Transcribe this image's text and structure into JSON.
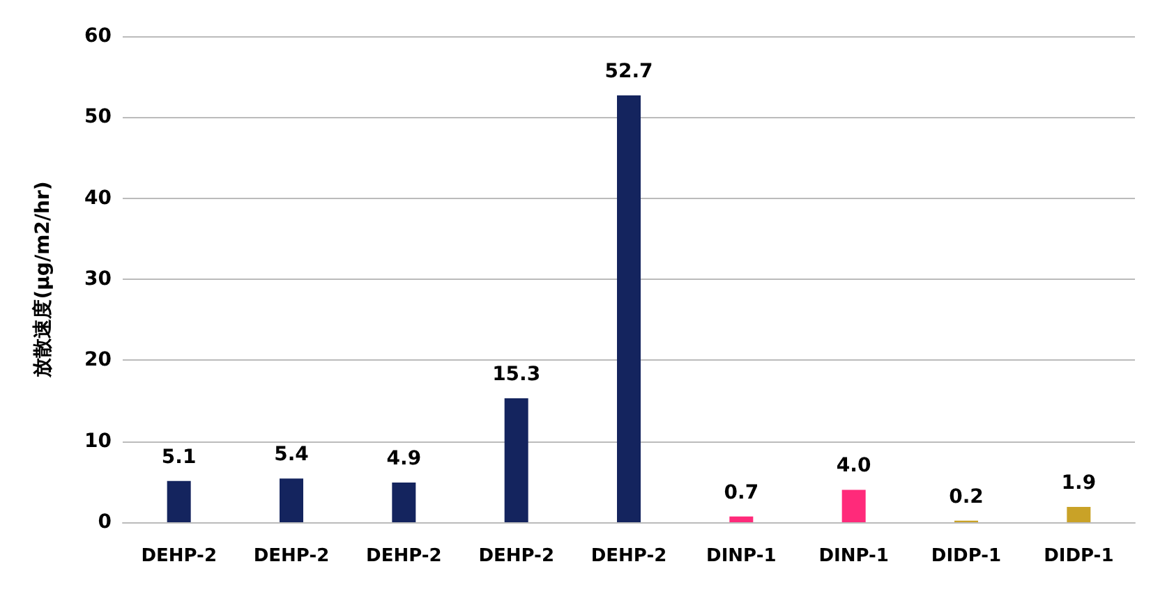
{
  "chart_data": {
    "type": "bar",
    "ylabel": "放散速度(μg/m2/hr)",
    "categories": [
      "DEHP-2",
      "DEHP-2",
      "DEHP-2",
      "DEHP-2",
      "DEHP-2",
      "DINP-1",
      "DINP-1",
      "DIDP-1",
      "DIDP-1"
    ],
    "values": [
      5.1,
      5.4,
      4.9,
      15.3,
      52.7,
      0.7,
      4.0,
      0.2,
      1.9
    ],
    "colors": [
      "#14245e",
      "#14245e",
      "#14245e",
      "#14245e",
      "#14245e",
      "#ff2a7a",
      "#ff2a7a",
      "#c9a227",
      "#c9a227"
    ],
    "value_labels": [
      "5.1",
      "5.4",
      "4.9",
      "15.3",
      "52.7",
      "0.7",
      "4.0",
      "0.2",
      "1.9"
    ],
    "ylim": [
      0,
      60
    ],
    "yticks": [
      0,
      10,
      20,
      30,
      40,
      50,
      60
    ],
    "grid": "y"
  }
}
